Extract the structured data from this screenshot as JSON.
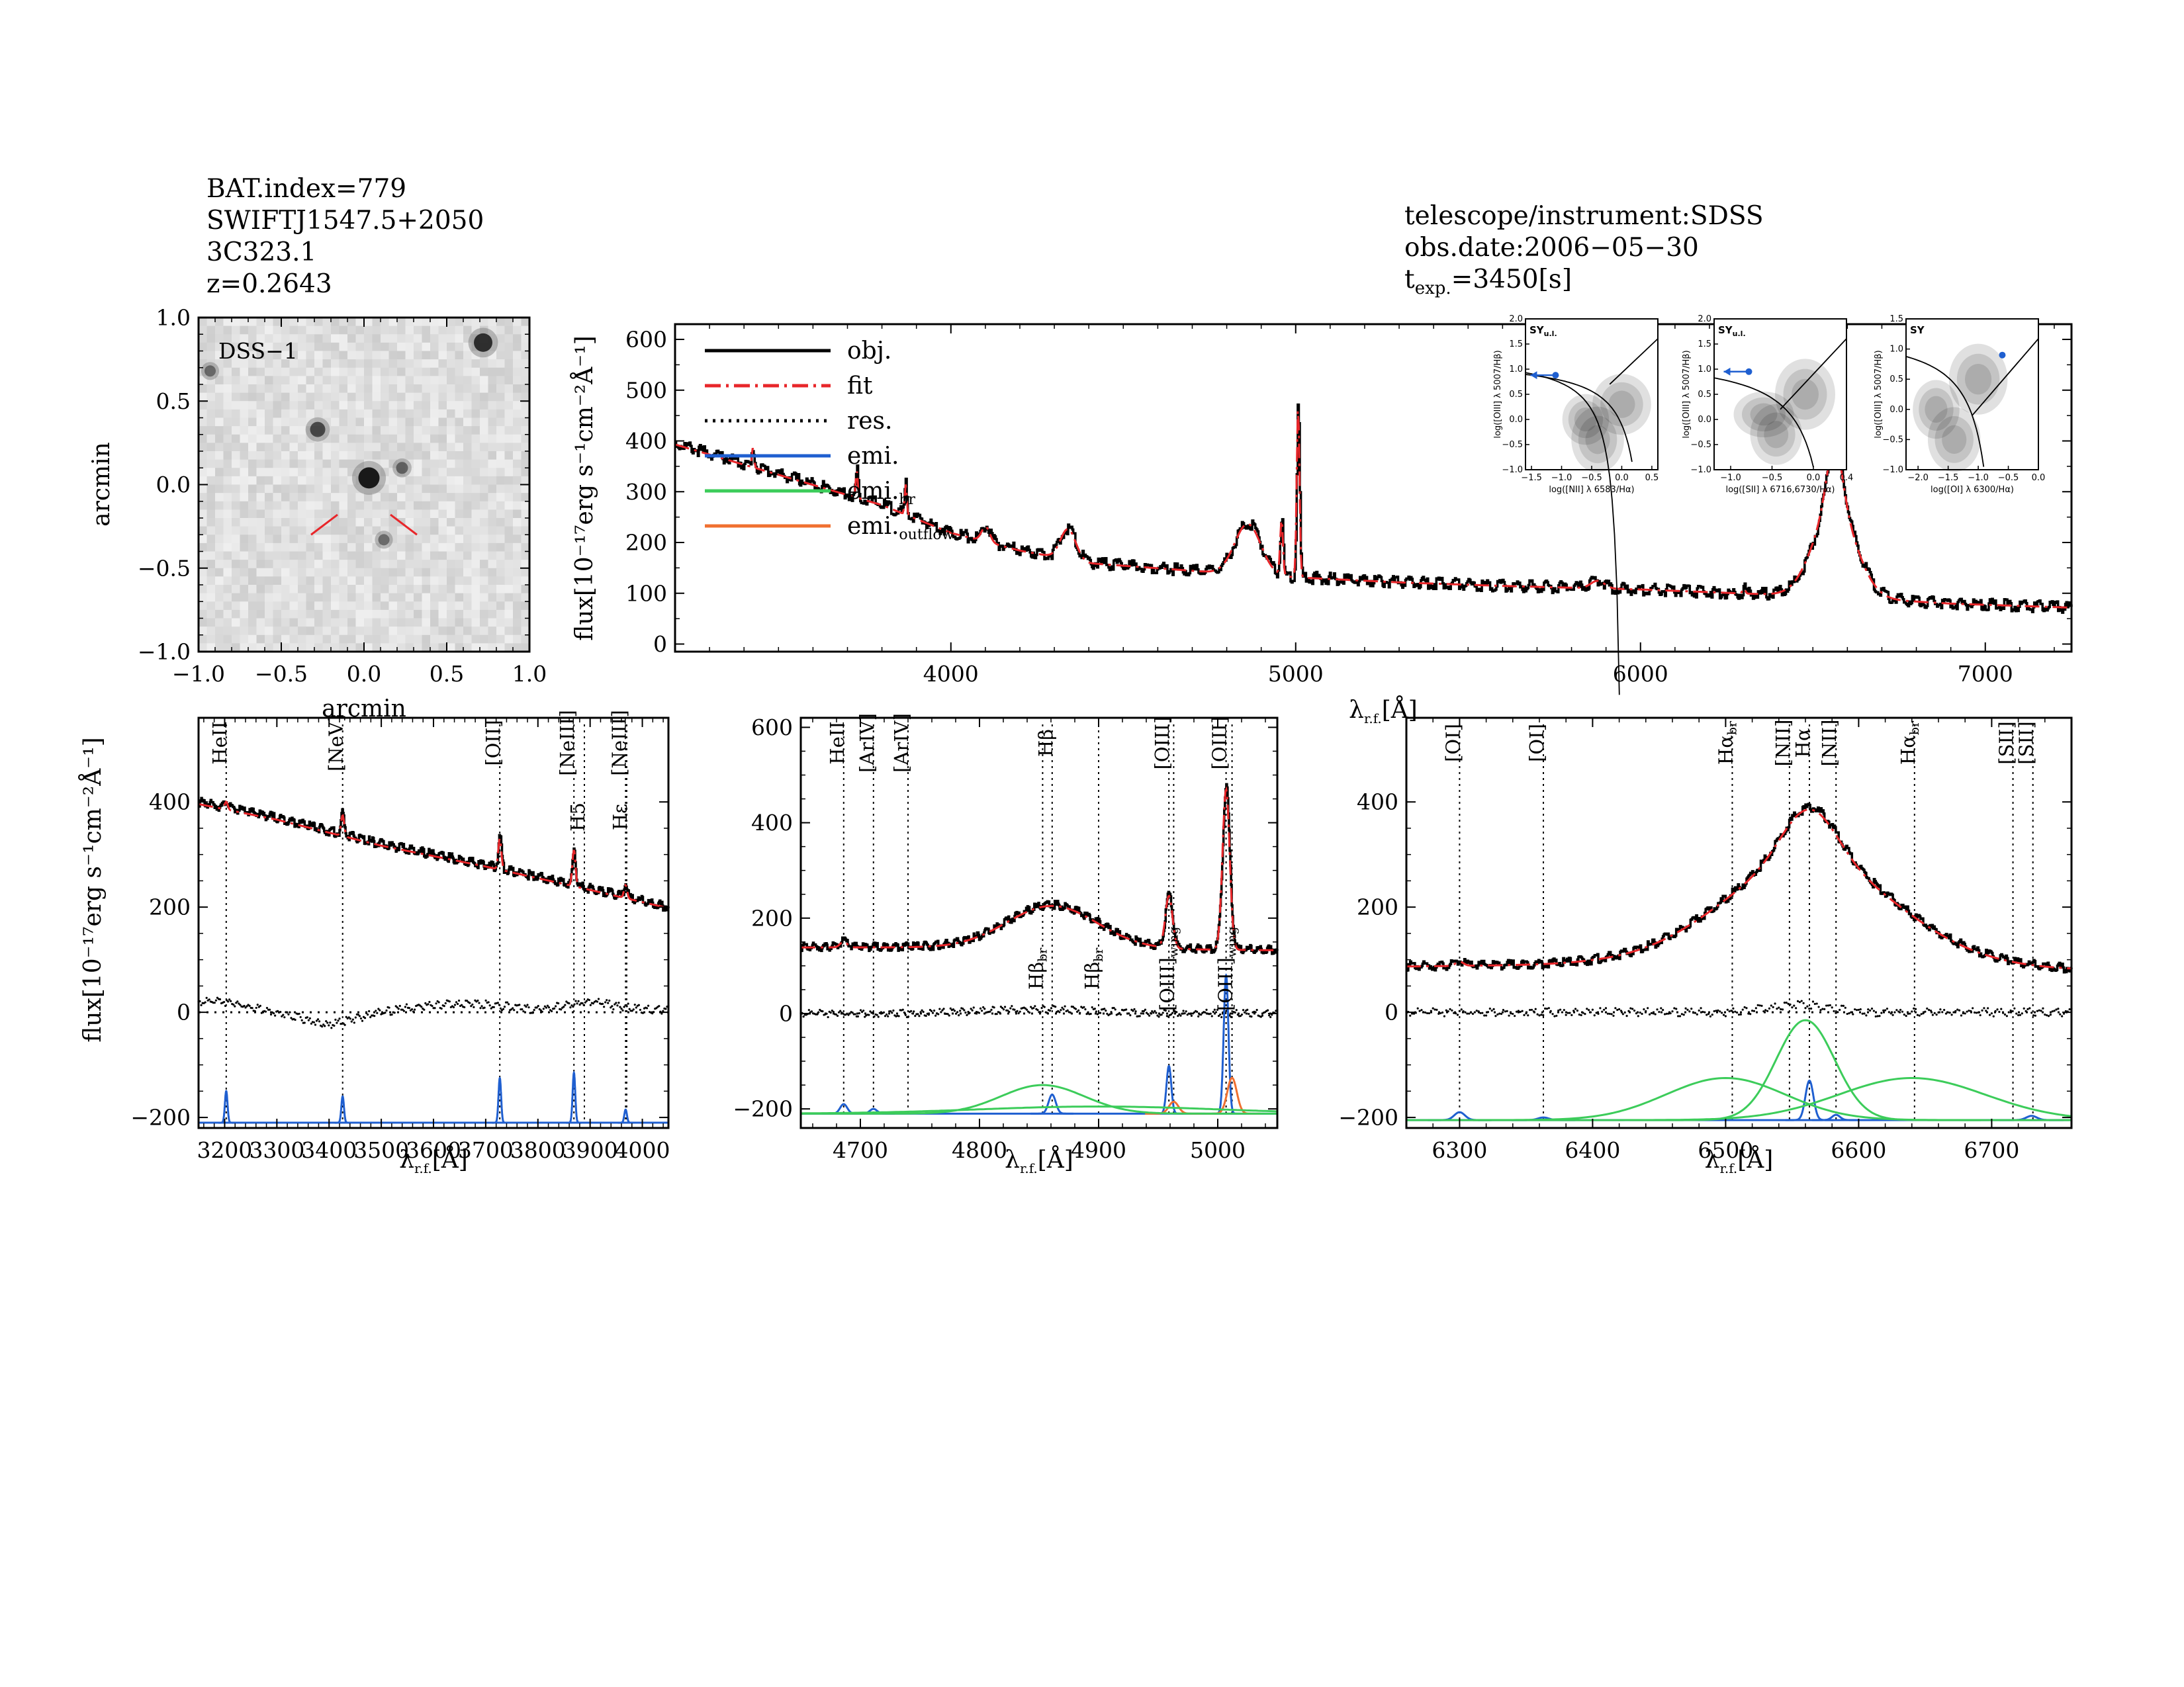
{
  "header_left": [
    "BAT.index=779",
    "SWIFTJ1547.5+2050",
    "3C323.1",
    "z=0.2643"
  ],
  "header_right": [
    "telescope/instrument:SDSS",
    "obs.date:2006−05−30"
  ],
  "texp": {
    "prefix": "t",
    "sub": "exp.",
    "suffix": "=3450[s]"
  },
  "colors": {
    "obj": "#000000",
    "fit": "#e8262a",
    "res": "#000000",
    "emi_narrow": "#1f5fd0",
    "emi_broad": "#3ccc5a",
    "emi_outflow": "#f07030",
    "bpt_point": "#1f5fd0"
  },
  "chart_data": [
    {
      "type": "image",
      "id": "dss",
      "title": "",
      "label": "DSS−1",
      "xlabel": "arcmin",
      "ylabel": "arcmin",
      "xlim": [
        -1.0,
        1.0
      ],
      "ylim": [
        -1.0,
        1.0
      ],
      "xticks": [
        -1.0,
        -0.5,
        0.0,
        0.5,
        1.0
      ],
      "yticks": [
        -1.0,
        -0.5,
        0.0,
        0.5,
        1.0
      ],
      "xtick_labels": [
        "−1.0",
        "−0.5",
        "0.0",
        "0.5",
        "1.0"
      ],
      "ytick_labels": [
        "−1.0",
        "−0.5",
        "0.0",
        "0.5",
        "1.0"
      ],
      "sources": [
        {
          "x": 0.03,
          "y": 0.04,
          "mag": 1.0
        },
        {
          "x": 0.72,
          "y": 0.85,
          "mag": 0.8
        },
        {
          "x": -0.28,
          "y": 0.33,
          "mag": 0.55
        },
        {
          "x": 0.23,
          "y": 0.1,
          "mag": 0.3
        },
        {
          "x": 0.12,
          "y": -0.33,
          "mag": 0.25
        },
        {
          "x": -0.93,
          "y": 0.68,
          "mag": 0.25
        }
      ]
    },
    {
      "type": "line",
      "id": "main",
      "title": "",
      "xlabel": "λ",
      "xlabel_sub": "r.f.",
      "xlabel_unit": "[Å]",
      "ylabel": "flux[10⁻¹⁷erg s⁻¹cm⁻²Å⁻¹]",
      "xlim": [
        3200,
        7250
      ],
      "ylim": [
        -15,
        630
      ],
      "xticks": [
        4000,
        5000,
        6000,
        7000
      ],
      "yticks": [
        0,
        100,
        200,
        300,
        400,
        500,
        600
      ],
      "legend": [
        {
          "label": "obj.",
          "style": "solid",
          "color": "#000000"
        },
        {
          "label": "fit",
          "style": "dashdot",
          "color": "#e8262a"
        },
        {
          "label": "res.",
          "style": "dotted",
          "color": "#000000"
        },
        {
          "label": "emi.",
          "style": "solid",
          "color": "#1f5fd0"
        },
        {
          "label": "emi.",
          "sub": "br",
          "style": "solid",
          "color": "#3ccc5a"
        },
        {
          "label": "emi.",
          "sub": "outflow",
          "style": "solid",
          "color": "#f07030"
        }
      ],
      "continuum": {
        "x": [
          3200,
          3400,
          3600,
          3800,
          4000,
          4200,
          4400,
          4600,
          4800,
          5000,
          5300,
          5600,
          6000,
          6300,
          6600,
          6900,
          7250
        ],
        "y": [
          395,
          355,
          315,
          275,
          220,
          185,
          160,
          150,
          140,
          132,
          122,
          115,
          108,
          100,
          92,
          80,
          72
        ]
      },
      "lines": [
        {
          "center": 3426,
          "amp": 40,
          "sigma": 3
        },
        {
          "center": 3727,
          "amp": 55,
          "sigma": 3
        },
        {
          "center": 3869,
          "amp": 60,
          "sigma": 3
        },
        {
          "center": 4101,
          "amp": 30,
          "sigma": 12
        },
        {
          "center": 4340,
          "amp": 60,
          "sigma": 22
        },
        {
          "center": 4861,
          "amp": 100,
          "sigma": 38
        },
        {
          "center": 4959,
          "amp": 110,
          "sigma": 4
        },
        {
          "center": 5007,
          "amp": 340,
          "sigma": 4
        },
        {
          "center": 5876,
          "amp": 15,
          "sigma": 20
        },
        {
          "center": 6300,
          "amp": 10,
          "sigma": 4
        },
        {
          "center": 6563,
          "amp": 180,
          "sigma": 60
        },
        {
          "center": 6563,
          "amp": 120,
          "sigma": 22
        }
      ],
      "insets": [
        {
          "id": "bpt_nii",
          "xlabel": "log([NII] λ 6583/Hα)",
          "ylabel": "log([OIII] λ 5007/Hβ)",
          "label": "SY",
          "label_sub": "u.l.",
          "xlim": [
            -1.6,
            0.6
          ],
          "ylim": [
            -1.0,
            2.0
          ],
          "xticks": [
            -1.5,
            -1.0,
            -0.5,
            0.0,
            0.5
          ],
          "xtick_labels": [
            "−1.5",
            "−1.0",
            "−0.5",
            "0.0",
            "0.5"
          ],
          "yticks": [
            -1.0,
            -0.5,
            0.0,
            0.5,
            1.0,
            1.5,
            2.0
          ],
          "ytick_labels": [
            "−1.0",
            "−0.5",
            "0.0",
            "0.5",
            "1.0",
            "1.5",
            "2.0"
          ],
          "point": {
            "x": -1.1,
            "y": 0.88
          },
          "upper_limit": true,
          "curves": [
            "kauffmann",
            "kewley",
            "seyfert_liner"
          ]
        },
        {
          "id": "bpt_sii",
          "xlabel": "log([SII] λ 6716,6730/Hα)",
          "ylabel": "log([OIII] λ 5007/Hβ)",
          "label": "SY",
          "label_sub": "u.l.",
          "xlim": [
            -1.2,
            0.4
          ],
          "ylim": [
            -1.0,
            2.0
          ],
          "xticks": [
            -1.0,
            -0.5,
            0.0,
            0.4
          ],
          "xtick_labels": [
            "−1.0",
            "−0.5",
            "0.0",
            "0.4"
          ],
          "yticks": [
            -1.0,
            -0.5,
            0.0,
            0.5,
            1.0,
            1.5,
            2.0
          ],
          "ytick_labels": [
            "−1.0",
            "−0.5",
            "0.0",
            "0.5",
            "1.0",
            "1.5",
            "2.0"
          ],
          "point": {
            "x": -0.78,
            "y": 0.95
          },
          "upper_limit": true,
          "curves": [
            "kewley",
            "seyfert_liner"
          ]
        },
        {
          "id": "bpt_oi",
          "xlabel": "log([OI] λ 6300/Hα)",
          "ylabel": "log([OIII] λ 5007/Hβ)",
          "label": "SY",
          "label_sub": "",
          "xlim": [
            -2.2,
            0.0
          ],
          "ylim": [
            -1.0,
            1.5
          ],
          "xticks": [
            -2.0,
            -1.5,
            -1.0,
            -0.5,
            0.0
          ],
          "xtick_labels": [
            "−2.0",
            "−1.5",
            "−1.0",
            "−0.5",
            "0.0"
          ],
          "yticks": [
            -1.0,
            -0.5,
            0.0,
            0.5,
            1.0,
            1.5
          ],
          "ytick_labels": [
            "−1.0",
            "−0.5",
            "0.0",
            "0.5",
            "1.0",
            "1.5"
          ],
          "point": {
            "x": -0.6,
            "y": 0.9
          },
          "upper_limit": false,
          "curves": [
            "kewley",
            "seyfert_liner"
          ]
        }
      ]
    },
    {
      "type": "line",
      "id": "zoom1",
      "title": "",
      "xlabel": "λ",
      "xlabel_sub": "r.f.",
      "xlabel_unit": "[Å]",
      "ylabel": "flux[10⁻¹⁷erg s⁻¹cm⁻²Å⁻¹]",
      "xlim": [
        3150,
        4050
      ],
      "ylim": [
        -220,
        560
      ],
      "xticks": [
        3200,
        3300,
        3400,
        3500,
        3600,
        3700,
        3800,
        3900,
        4000
      ],
      "yticks": [
        -200,
        0,
        200,
        400
      ],
      "ytick_labels": [
        "−200",
        "0",
        "200",
        "400"
      ],
      "continuum": {
        "x": [
          3150,
          3300,
          3500,
          3700,
          3900,
          4050
        ],
        "y": [
          400,
          370,
          320,
          280,
          235,
          200
        ]
      },
      "lines": [
        {
          "center": 3203,
          "amp": 15,
          "sigma": 3
        },
        {
          "center": 3426,
          "amp": 40,
          "sigma": 3
        },
        {
          "center": 3727,
          "amp": 60,
          "sigma": 3
        },
        {
          "center": 3869,
          "amp": 70,
          "sigma": 3
        },
        {
          "center": 3968,
          "amp": 25,
          "sigma": 3
        }
      ],
      "residual": {
        "x": [
          3200,
          3300,
          3400,
          3500,
          3600,
          3700,
          3800,
          3900,
          4000
        ],
        "y": [
          20,
          0,
          -25,
          0,
          15,
          15,
          5,
          20,
          5
        ]
      },
      "emission_baseline": -210,
      "emission": [
        {
          "center": 3203,
          "amp": 60,
          "sigma": 2.5,
          "color": "#1f5fd0"
        },
        {
          "center": 3426,
          "amp": 50,
          "sigma": 2.5,
          "color": "#1f5fd0"
        },
        {
          "center": 3727,
          "amp": 85,
          "sigma": 2.5,
          "color": "#1f5fd0"
        },
        {
          "center": 3869,
          "amp": 95,
          "sigma": 2.5,
          "color": "#1f5fd0"
        },
        {
          "center": 3968,
          "amp": 25,
          "sigma": 2.5,
          "color": "#1f5fd0"
        }
      ],
      "labels": [
        {
          "x": 3203,
          "text": "HeII",
          "color": "#000000",
          "pos": "top"
        },
        {
          "x": 3426,
          "text": "[NeV]",
          "color": "#000000",
          "pos": "top"
        },
        {
          "x": 3727,
          "text": "[OII]",
          "color": "#000000",
          "pos": "top"
        },
        {
          "x": 3869,
          "text": "[NeIII]",
          "color": "#000000",
          "pos": "top"
        },
        {
          "x": 3968,
          "text": "[NeIII]",
          "color": "#000000",
          "pos": "top"
        },
        {
          "x": 3889,
          "text": "H5",
          "color": "#e8262a",
          "pos": "mid"
        },
        {
          "x": 3970,
          "text": "Hε",
          "color": "#e8262a",
          "pos": "mid"
        }
      ]
    },
    {
      "type": "line",
      "id": "zoom2",
      "title": "",
      "xlabel": "λ",
      "xlabel_sub": "r.f.",
      "xlabel_unit": "[Å]",
      "xlim": [
        4650,
        5050
      ],
      "ylim": [
        -240,
        620
      ],
      "xticks": [
        4700,
        4800,
        4900,
        5000
      ],
      "yticks": [
        -200,
        0,
        200,
        400,
        600
      ],
      "ytick_labels": [
        "−200",
        "0",
        "200",
        "400",
        "600"
      ],
      "continuum": {
        "x": [
          4650,
          4750,
          4850,
          4950,
          5050
        ],
        "y": [
          140,
          140,
          138,
          136,
          134
        ]
      },
      "lines": [
        {
          "center": 4686,
          "amp": 12,
          "sigma": 3
        },
        {
          "center": 4861,
          "amp": 90,
          "sigma": 38
        },
        {
          "center": 4959,
          "amp": 110,
          "sigma": 3
        },
        {
          "center": 5007,
          "amp": 340,
          "sigma": 3
        }
      ],
      "residual": {
        "x": [
          4650,
          4750,
          4850,
          4950,
          5050
        ],
        "y": [
          0,
          0,
          10,
          0,
          0
        ]
      },
      "emission_baseline": -210,
      "emission": [
        {
          "center": 4686,
          "amp": 20,
          "sigma": 3,
          "color": "#1f5fd0"
        },
        {
          "center": 4711,
          "amp": 10,
          "sigma": 3,
          "color": "#1f5fd0"
        },
        {
          "center": 4861,
          "amp": 40,
          "sigma": 3,
          "color": "#1f5fd0"
        },
        {
          "center": 4959,
          "amp": 100,
          "sigma": 2,
          "color": "#1f5fd0"
        },
        {
          "center": 5007,
          "amp": 290,
          "sigma": 2,
          "color": "#1f5fd0"
        },
        {
          "center": 4963,
          "amp": 25,
          "sigma": 4,
          "color": "#f07030"
        },
        {
          "center": 5012,
          "amp": 75,
          "sigma": 4,
          "color": "#f07030"
        },
        {
          "center": 4853,
          "amp": 60,
          "sigma": 35,
          "color": "#3ccc5a"
        },
        {
          "center": 4900,
          "amp": 15,
          "sigma": 100,
          "color": "#3ccc5a"
        }
      ],
      "labels": [
        {
          "x": 4686,
          "text": "HeII",
          "color": "#000000",
          "pos": "top"
        },
        {
          "x": 4711,
          "text": "[ArIV]",
          "color": "#000000",
          "pos": "top"
        },
        {
          "x": 4740,
          "text": "[ArIV]",
          "color": "#e8262a",
          "pos": "top"
        },
        {
          "x": 4861,
          "text": "Hβ",
          "color": "#000000",
          "pos": "top"
        },
        {
          "x": 4959,
          "text": "[OIII]",
          "color": "#000000",
          "pos": "top"
        },
        {
          "x": 5007,
          "text": "[OIII]",
          "color": "#000000",
          "pos": "top"
        },
        {
          "x": 4853,
          "text": "Hβ",
          "sub": "br",
          "color": "#000000",
          "pos": "mid"
        },
        {
          "x": 4900,
          "text": "Hβ",
          "sub": "br",
          "color": "#000000",
          "pos": "mid"
        },
        {
          "x": 4963,
          "text": "[OIII]",
          "sub": "wing",
          "color": "#000000",
          "pos": "mid"
        },
        {
          "x": 5012,
          "text": "[OIII]",
          "sub": "wing",
          "color": "#000000",
          "pos": "mid"
        }
      ]
    },
    {
      "type": "line",
      "id": "zoom3",
      "title": "",
      "xlabel": "λ",
      "xlabel_sub": "r.f.",
      "xlabel_unit": "[Å]",
      "xlim": [
        6260,
        6760
      ],
      "ylim": [
        -220,
        560
      ],
      "xticks": [
        6300,
        6400,
        6500,
        6600,
        6700
      ],
      "yticks": [
        -200,
        0,
        200,
        400
      ],
      "ytick_labels": [
        "−200",
        "0",
        "200",
        "400"
      ],
      "continuum": {
        "x": [
          6260,
          6400,
          6550,
          6700,
          6760
        ],
        "y": [
          88,
          92,
          90,
          85,
          82
        ]
      },
      "lines": [
        {
          "center": 6300,
          "amp": 8,
          "sigma": 3
        },
        {
          "center": 6563,
          "amp": 200,
          "sigma": 65
        },
        {
          "center": 6563,
          "amp": 100,
          "sigma": 20
        }
      ],
      "residual": {
        "x": [
          6260,
          6500,
          6560,
          6600,
          6760
        ],
        "y": [
          0,
          0,
          15,
          0,
          0
        ]
      },
      "emission_baseline": -205,
      "emission": [
        {
          "center": 6300,
          "amp": 15,
          "sigma": 4,
          "color": "#1f5fd0"
        },
        {
          "center": 6363,
          "amp": 5,
          "sigma": 4,
          "color": "#1f5fd0"
        },
        {
          "center": 6563,
          "amp": 75,
          "sigma": 3,
          "color": "#1f5fd0"
        },
        {
          "center": 6583,
          "amp": 10,
          "sigma": 3,
          "color": "#1f5fd0"
        },
        {
          "center": 6730,
          "amp": 8,
          "sigma": 4,
          "color": "#1f5fd0"
        },
        {
          "center": 6500,
          "amp": 80,
          "sigma": 45,
          "color": "#3ccc5a"
        },
        {
          "center": 6560,
          "amp": 190,
          "sigma": 22,
          "color": "#3ccc5a"
        },
        {
          "center": 6640,
          "amp": 80,
          "sigma": 55,
          "color": "#3ccc5a"
        }
      ],
      "labels": [
        {
          "x": 6300,
          "text": "[OI]",
          "color": "#000000",
          "pos": "top"
        },
        {
          "x": 6363,
          "text": "[OI]",
          "color": "#000000",
          "pos": "top"
        },
        {
          "x": 6505,
          "text": "Hα",
          "sub": "br",
          "color": "#000000",
          "pos": "top"
        },
        {
          "x": 6548,
          "text": "[NII]",
          "color": "#e8262a",
          "pos": "top"
        },
        {
          "x": 6563,
          "text": "Hα",
          "color": "#000000",
          "pos": "top"
        },
        {
          "x": 6583,
          "text": "[NII]",
          "color": "#e8262a",
          "pos": "top"
        },
        {
          "x": 6642,
          "text": "Hα",
          "sub": "br",
          "color": "#000000",
          "pos": "top"
        },
        {
          "x": 6716,
          "text": "[SII]",
          "color": "#e8262a",
          "pos": "top"
        },
        {
          "x": 6731,
          "text": "[SII]",
          "color": "#000000",
          "pos": "top"
        }
      ]
    }
  ]
}
